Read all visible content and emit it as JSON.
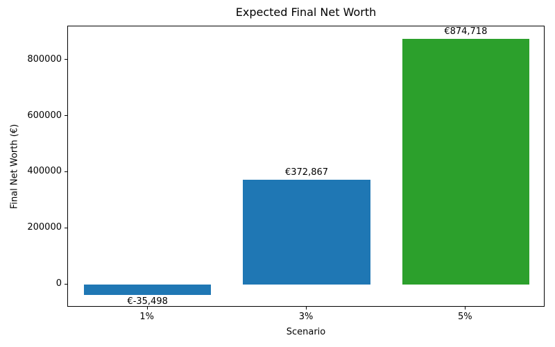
{
  "title": "Expected Final Net Worth",
  "chart_data": {
    "type": "bar",
    "title": "Expected Final Net Worth",
    "xlabel": "Scenario",
    "ylabel": "Final Net Worth (€)",
    "categories": [
      "1%",
      "3%",
      "5%"
    ],
    "values": [
      -35498,
      372867,
      874718
    ],
    "value_labels": [
      "€-35,498",
      "€372,867",
      "€874,718"
    ],
    "bar_colors": [
      "#1f77b4",
      "#1f77b4",
      "#2ca02c"
    ],
    "yticks": [
      0,
      200000,
      400000,
      600000,
      800000
    ],
    "ytick_labels": [
      "0",
      "200000",
      "400000",
      "600000",
      "800000"
    ],
    "ylim": [
      -81008,
      920228
    ],
    "xlim_slots": 3,
    "bar_width_fraction": 0.8,
    "grid": false,
    "legend": null,
    "background_color": "#ffffff",
    "spine_color": "#000000"
  }
}
